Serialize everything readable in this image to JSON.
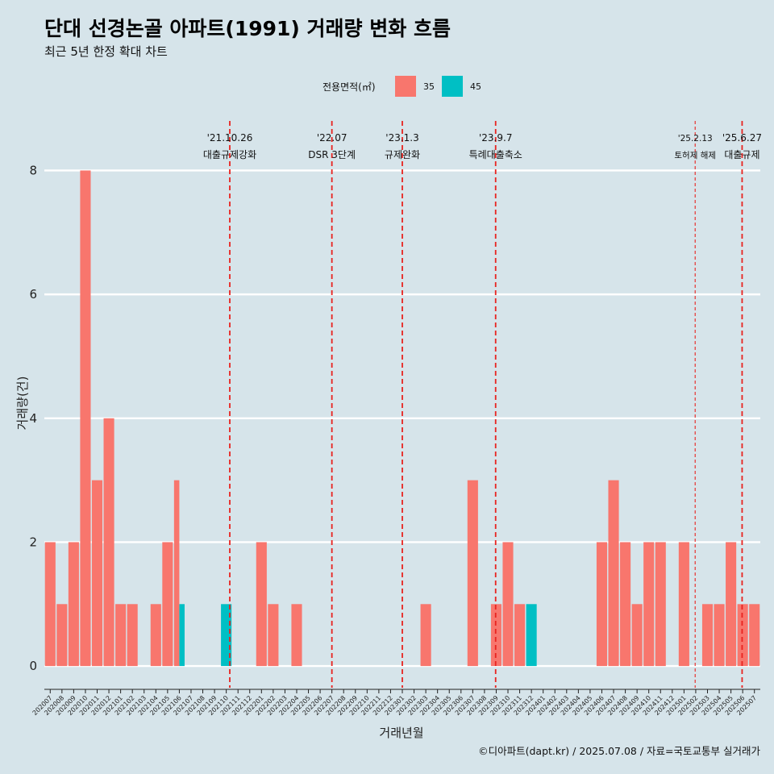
{
  "title": "단대 선경논골 아파트(1991) 거래량 변화 흐름",
  "subtitle": "최근 5년 한정 확대 차트",
  "caption": "©디아파트(dapt.kr) / 2025.07.08 / 자료=국토교통부 실거래가",
  "legend": {
    "title": "전용면적(㎡)",
    "items": [
      {
        "label": "35",
        "color": "#f8766d"
      },
      {
        "label": "45",
        "color": "#00bfc4"
      }
    ]
  },
  "chart_data": {
    "type": "bar",
    "stacked": false,
    "xlabel": "거래년월",
    "ylabel": "거래량(건)",
    "ylim": [
      -0.35,
      8.8
    ],
    "yticks": [
      0,
      2,
      4,
      6,
      8
    ],
    "grid": "horizontal major lines",
    "legend_position": "top",
    "categories": [
      "202007",
      "202008",
      "202009",
      "202010",
      "202011",
      "202012",
      "202101",
      "202102",
      "202103",
      "202104",
      "202105",
      "202106",
      "202107",
      "202108",
      "202109",
      "202110",
      "202111",
      "202112",
      "202201",
      "202202",
      "202203",
      "202204",
      "202205",
      "202206",
      "202207",
      "202208",
      "202209",
      "202210",
      "202211",
      "202212",
      "202301",
      "202302",
      "202303",
      "202304",
      "202305",
      "202306",
      "202307",
      "202308",
      "202309",
      "202310",
      "202311",
      "202312",
      "202401",
      "202402",
      "202403",
      "202404",
      "202405",
      "202406",
      "202407",
      "202408",
      "202409",
      "202410",
      "202411",
      "202412",
      "202501",
      "202502",
      "202503",
      "202504",
      "202505",
      "202506",
      "202507"
    ],
    "series": [
      {
        "name": "35",
        "color": "#f8766d",
        "values": [
          2,
          1,
          2,
          8,
          3,
          4,
          1,
          1,
          0,
          1,
          2,
          3,
          0,
          0,
          0,
          0,
          0,
          0,
          2,
          1,
          0,
          1,
          0,
          0,
          0,
          0,
          0,
          0,
          0,
          0,
          0,
          0,
          1,
          0,
          0,
          0,
          3,
          0,
          1,
          2,
          1,
          0,
          0,
          0,
          0,
          0,
          0,
          2,
          3,
          2,
          1,
          2,
          2,
          0,
          2,
          0,
          1,
          1,
          2,
          1,
          1
        ]
      },
      {
        "name": "45",
        "color": "#00bfc4",
        "values": [
          0,
          0,
          0,
          0,
          0,
          0,
          0,
          0,
          0,
          0,
          0,
          1,
          0,
          0,
          0,
          1,
          0,
          0,
          0,
          0,
          0,
          0,
          0,
          0,
          0,
          0,
          0,
          0,
          0,
          0,
          0,
          0,
          0,
          0,
          0,
          0,
          0,
          0,
          0,
          0,
          0,
          1,
          0,
          0,
          0,
          0,
          0,
          0,
          0,
          0,
          0,
          0,
          0,
          0,
          0,
          0,
          0,
          0,
          0,
          0,
          0
        ]
      }
    ],
    "annotations": [
      {
        "date": "'21.10.26",
        "text": "대출규제강화",
        "x_index": 15.8,
        "style": "bold"
      },
      {
        "date": "'22.07",
        "text": "DSR 3단계",
        "x_index": 24.5,
        "style": "bold"
      },
      {
        "date": "'23.1.3",
        "text": "규제완화",
        "x_index": 30.5,
        "style": "bold"
      },
      {
        "date": "'23.9.7",
        "text": "특례대출축소",
        "x_index": 38.45,
        "style": "bold"
      },
      {
        "date": "'25.2.13",
        "text": "토허제 해제",
        "x_index": 55.45,
        "style": "thin"
      },
      {
        "date": "'25.6.27",
        "text": "대출규제",
        "x_index": 59.45,
        "style": "bold"
      }
    ]
  }
}
